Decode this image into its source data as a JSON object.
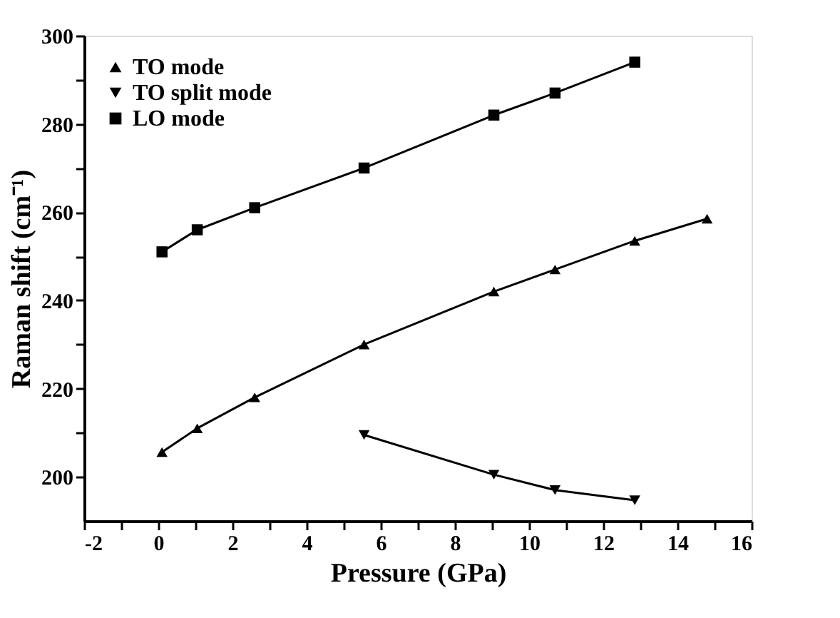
{
  "chart_data": {
    "type": "scatter",
    "xlabel": "Pressure (GPa)",
    "ylabel": "Raman shift (cm⁻¹)",
    "xlim": [
      -2,
      16
    ],
    "ylim": [
      190,
      300
    ],
    "xticks": [
      -2,
      {
        "value": -1,
        "label": null
      },
      0,
      {
        "value": 1,
        "label": null
      },
      2,
      {
        "value": 3,
        "label": null
      },
      4,
      {
        "value": 5,
        "label": null
      },
      6,
      {
        "value": 7,
        "label": null
      },
      8,
      {
        "value": 9,
        "label": null
      },
      10,
      {
        "value": 11,
        "label": null
      },
      12,
      {
        "value": 13,
        "label": null
      },
      14,
      {
        "value": 15,
        "label": null
      },
      16
    ],
    "yticks": [
      200,
      {
        "value": 210,
        "label": null
      },
      220,
      {
        "value": 230,
        "label": null
      },
      240,
      {
        "value": 250,
        "label": null
      },
      260,
      {
        "value": 270,
        "label": null
      },
      280,
      {
        "value": 290,
        "label": null
      },
      300
    ],
    "grid": false,
    "legend": "top left",
    "series": [
      {
        "name": "TO mode",
        "color": "#000000",
        "marker": "triangle",
        "x": [
          0.1,
          1.05,
          2.6,
          5.55,
          9.05,
          10.7,
          12.85,
          14.8
        ],
        "values": [
          205.6,
          211,
          218,
          230,
          242,
          247,
          253.5,
          258.5
        ]
      },
      {
        "name": "TO split mode",
        "color": "#000000",
        "marker": "triangle-down",
        "x": [
          5.55,
          9.05,
          10.7,
          12.85
        ],
        "values": [
          209.5,
          200.5,
          197,
          194.7
        ]
      },
      {
        "name": "LO mode",
        "color": "#000000",
        "marker": "square",
        "x": [
          0.1,
          1.05,
          2.6,
          5.55,
          9.05,
          10.7,
          12.85
        ],
        "values": [
          251,
          256,
          261,
          270,
          282,
          287,
          294
        ]
      },
      {
        "type": "line",
        "color": "#000000",
        "marker": "none",
        "line_style": "solid",
        "x": [
          0.1,
          1.05,
          2.6,
          5.55,
          9.05,
          10.7,
          12.85,
          14.8
        ],
        "values": [
          205.6,
          211,
          218,
          230,
          242,
          247,
          253.5,
          258.5
        ]
      },
      {
        "type": "line",
        "color": "#000000",
        "marker": "none",
        "line_style": "solid",
        "x": [
          5.55,
          9.05,
          10.7,
          12.85
        ],
        "values": [
          209.5,
          200.5,
          197,
          194.7
        ]
      },
      {
        "type": "line",
        "color": "#000000",
        "marker": "none",
        "line_style": "solid",
        "x": [
          0.1,
          1.05,
          2.6,
          5.55,
          9.05,
          10.7,
          12.85
        ],
        "values": [
          251,
          256,
          261,
          270,
          282,
          287,
          294
        ]
      }
    ]
  }
}
